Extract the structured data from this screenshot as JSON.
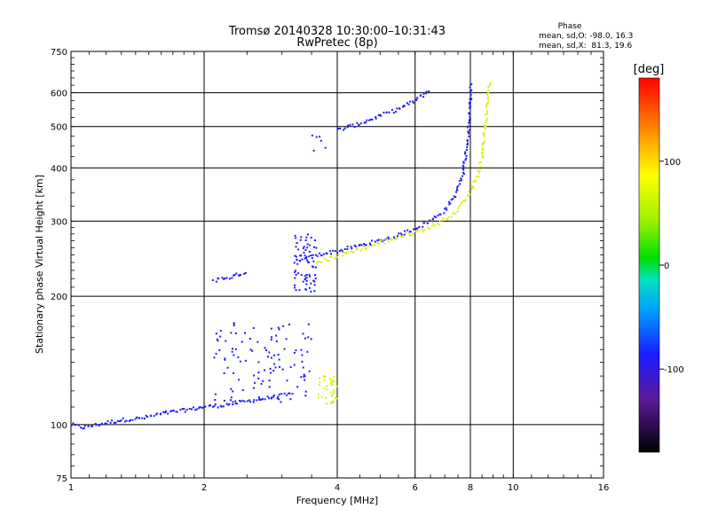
{
  "chart_data": {
    "type": "scatter",
    "title": "Tromsø 20140328 10:30:00–10:31:43",
    "subtitle": "RwPretec (8p)",
    "xlabel": "Frequency [MHz]",
    "ylabel": "Stationary phase Virtual Height [km]",
    "x_scale": "log",
    "y_scale": "log",
    "xlim": [
      1,
      16
    ],
    "ylim": [
      75,
      750
    ],
    "x_ticks": [
      "1",
      "2",
      "4",
      "6",
      "8",
      "10",
      "16"
    ],
    "y_ticks": [
      "75",
      "100",
      "200",
      "300",
      "400",
      "500",
      "600",
      "750"
    ],
    "grid": true,
    "phase_info": {
      "title": "Phase",
      "line_o": "mean, sd,O: -98.0, 16.3",
      "line_x": "mean, sd,X:  81.3, 19.6"
    },
    "colorbar": {
      "label": "[deg]",
      "range": [
        -180,
        180
      ],
      "ticks": [
        "100",
        "0",
        "-100"
      ],
      "tick_values": [
        100,
        0,
        -100
      ]
    },
    "series": [
      {
        "note": "O-mode traces (phase ≈ -98°)",
        "color": "#1a1aff",
        "segments": [
          [
            [
              1.0,
              100
            ],
            [
              1.06,
              98.5
            ],
            [
              1.12,
              99.5
            ],
            [
              1.2,
              101
            ],
            [
              1.3,
              102.5
            ],
            [
              1.45,
              103.5
            ],
            [
              1.6,
              106
            ],
            [
              1.8,
              108
            ],
            [
              2.0,
              110
            ],
            [
              2.2,
              111
            ],
            [
              2.5,
              113.5
            ],
            [
              2.8,
              115.5
            ],
            [
              3.0,
              117
            ],
            [
              3.2,
              118
            ]
          ],
          [
            [
              3.25,
              240
            ],
            [
              3.4,
              244
            ],
            [
              3.6,
              250
            ],
            [
              4.0,
              255
            ],
            [
              4.5,
              263
            ],
            [
              5.0,
              270
            ],
            [
              5.5,
              278
            ],
            [
              6.0,
              288
            ],
            [
              6.5,
              300
            ],
            [
              7.0,
              318
            ],
            [
              7.4,
              345
            ],
            [
              7.7,
              390
            ],
            [
              7.85,
              450
            ],
            [
              7.95,
              510
            ],
            [
              8.0,
              570
            ],
            [
              8.02,
              630
            ]
          ],
          [
            [
              4.0,
              490
            ],
            [
              4.5,
              508
            ],
            [
              5.0,
              530
            ],
            [
              5.5,
              550
            ],
            [
              6.0,
              575
            ],
            [
              6.5,
              610
            ]
          ],
          [
            [
              2.1,
              218
            ],
            [
              2.3,
              222
            ],
            [
              2.5,
              228
            ]
          ]
        ],
        "clusters": [
          {
            "x": [
              3.2,
              3.6
            ],
            "y": [
              205,
              285
            ],
            "count": 70
          },
          {
            "x": [
              2.1,
              3.5
            ],
            "y": [
              112,
              175
            ],
            "count": 110
          },
          {
            "x": [
              3.5,
              3.9
            ],
            "y": [
              435,
              480
            ],
            "count": 6
          }
        ]
      },
      {
        "note": "X-mode traces (phase ≈ +81°)",
        "color": "#d8f010",
        "segments": [
          [
            [
              3.6,
              240
            ],
            [
              4.5,
              258
            ],
            [
              5.5,
              275
            ],
            [
              6.2,
              285
            ],
            [
              6.8,
              297
            ],
            [
              7.4,
              315
            ],
            [
              7.9,
              345
            ],
            [
              8.3,
              380
            ],
            [
              8.5,
              420
            ],
            [
              8.6,
              480
            ],
            [
              8.7,
              540
            ],
            [
              8.8,
              610
            ],
            [
              8.85,
              640
            ]
          ]
        ],
        "clusters": [
          {
            "x": [
              3.6,
              4.0
            ],
            "y": [
              112,
              132
            ],
            "count": 40
          }
        ]
      }
    ]
  }
}
